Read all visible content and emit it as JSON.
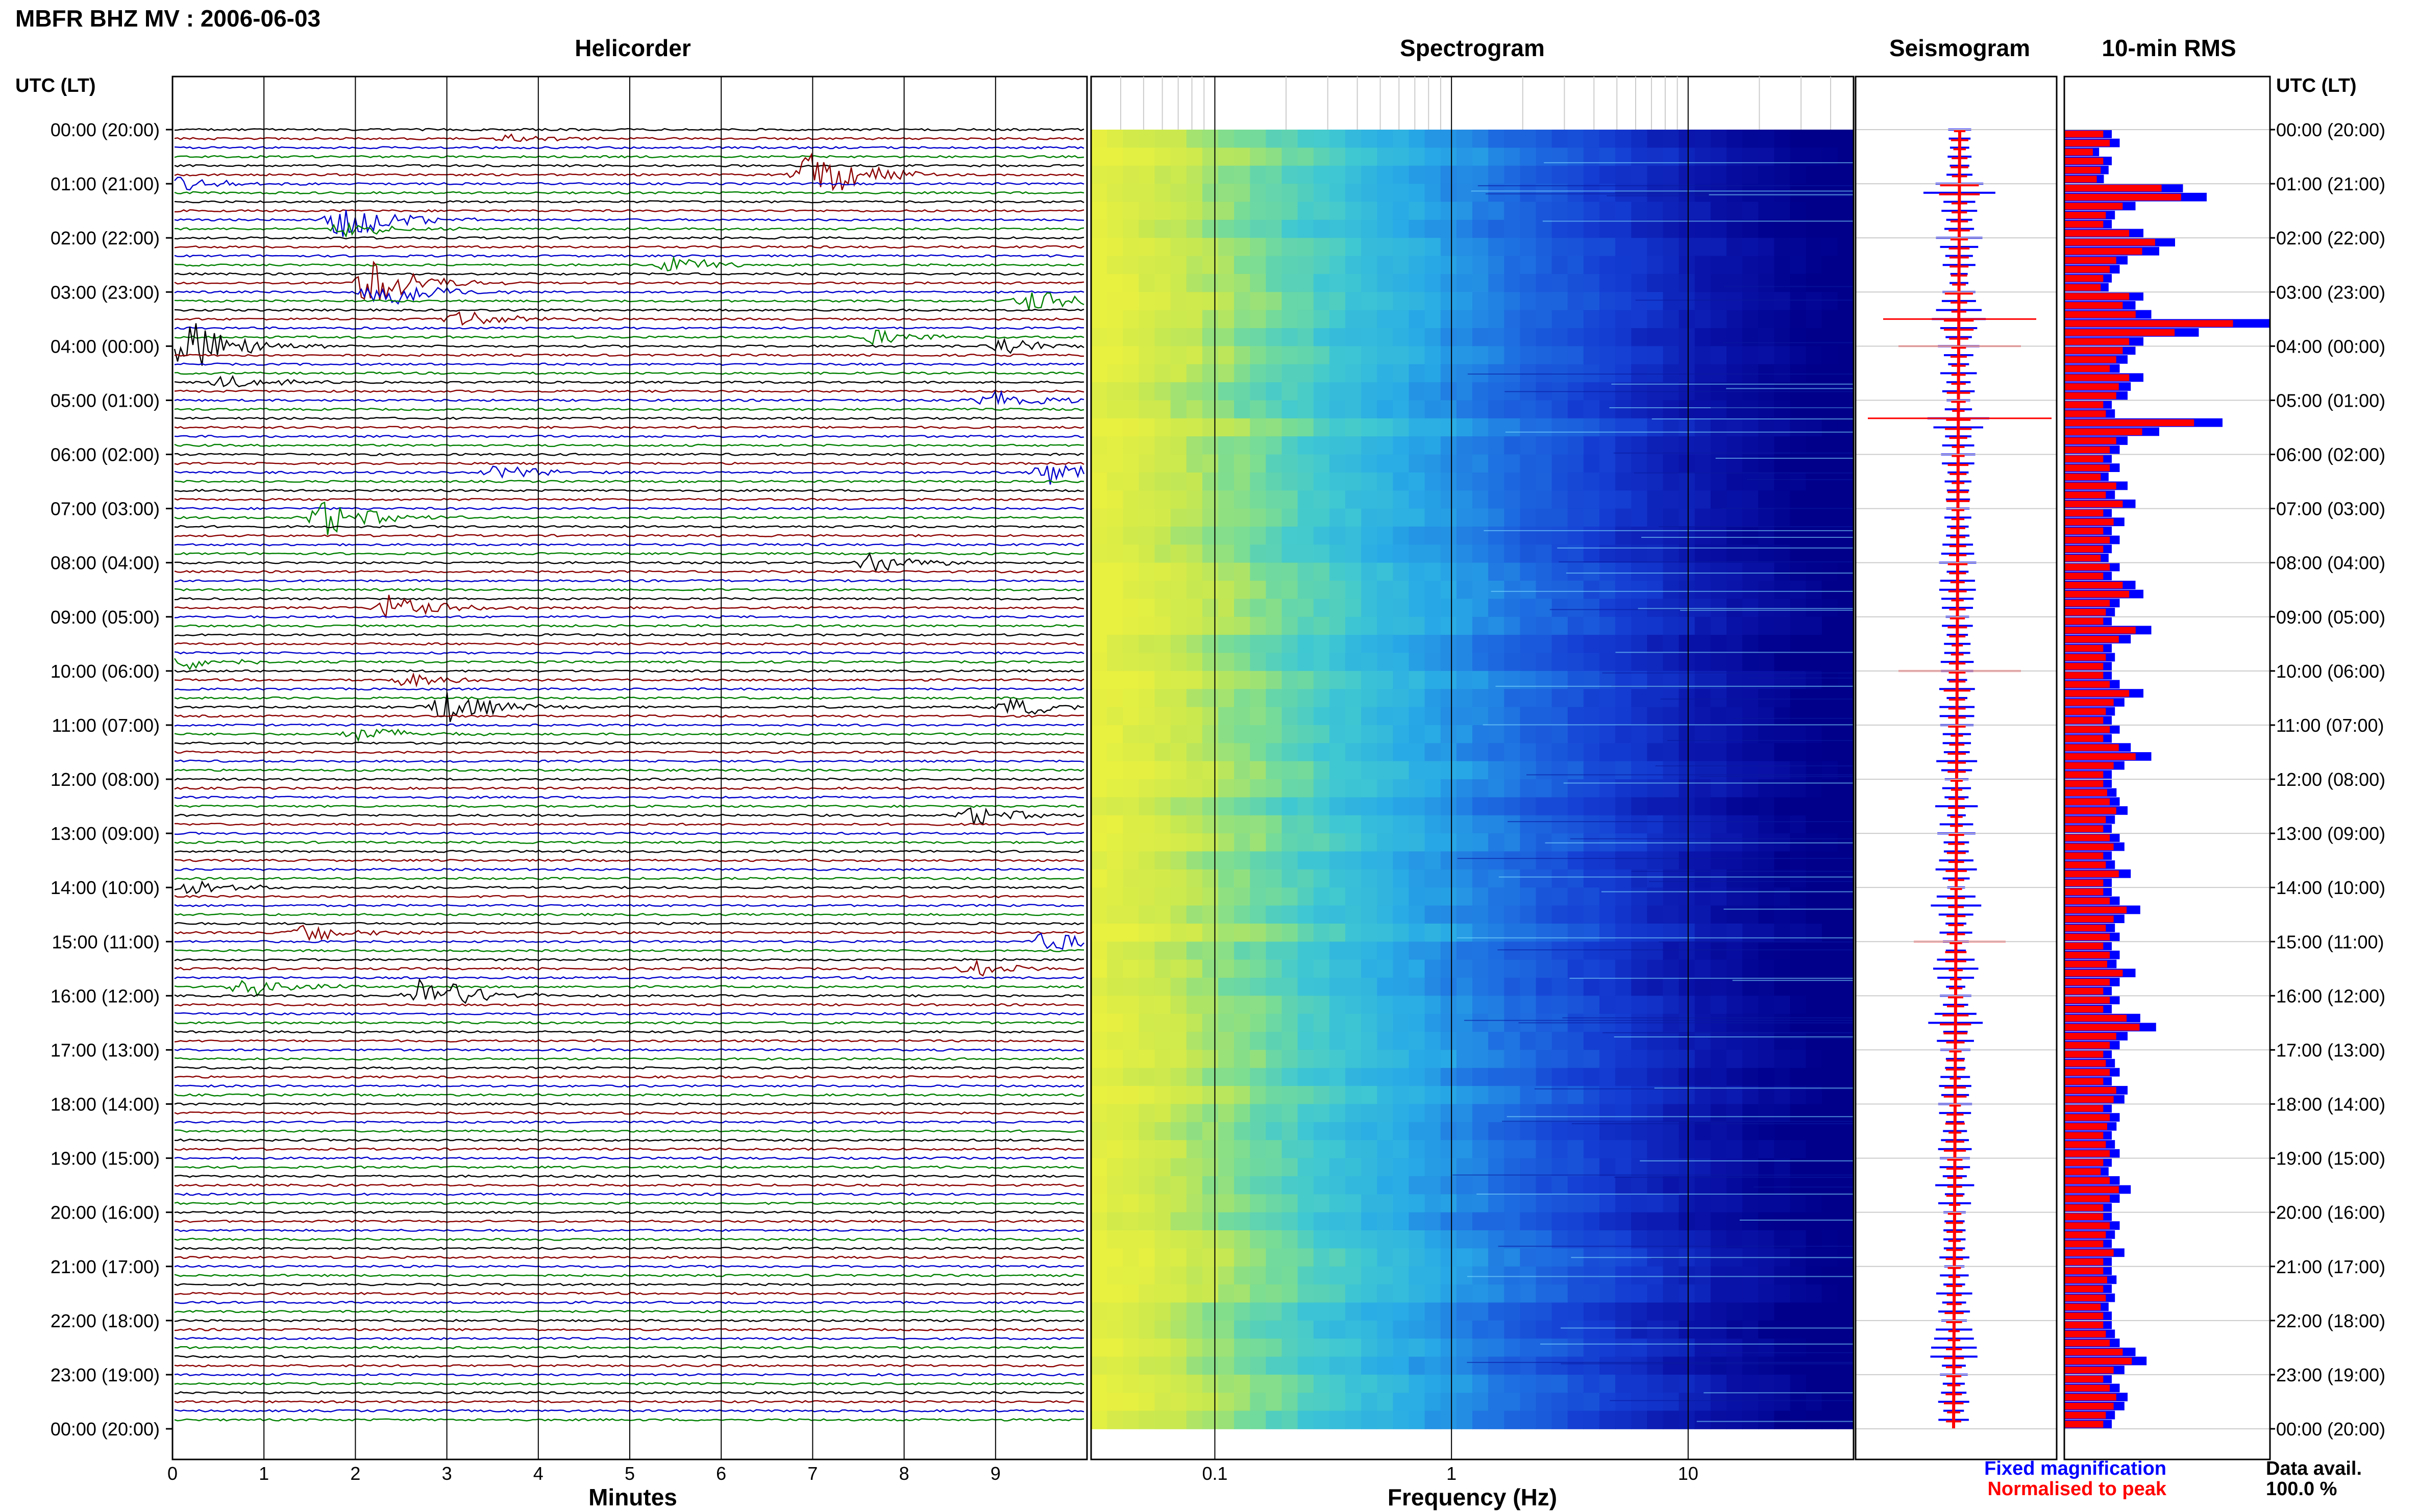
{
  "title": "MBFR BHZ MV : 2006-06-03",
  "panels": {
    "helicorder": "Helicorder",
    "spectrogram": "Spectrogram",
    "seismogram": "Seismogram",
    "rms": "10-min RMS"
  },
  "time_axis_label": "UTC (LT)",
  "helicorder_xlabel": "Minutes",
  "spectrogram_xlabel": "Frequency (Hz)",
  "legend": {
    "fixed": "Fixed magnification",
    "normalised": "Normalised to peak",
    "fixed_color": "#0000ff",
    "normalised_color": "#ff0000"
  },
  "data_avail_label": "Data avail.",
  "data_avail_value": "100.0 %",
  "colors": {
    "trace_cycle": [
      "#000000",
      "#8b0000",
      "#0000cd",
      "#008000"
    ],
    "spec_low": "#e8f040",
    "spec_high": "#00008b"
  },
  "chart_data": [
    {
      "type": "line",
      "panel": "Helicorder",
      "xlabel": "Minutes",
      "ylabel": "UTC (LT)",
      "x_ticks": [
        "0",
        "1",
        "2",
        "3",
        "4",
        "5",
        "6",
        "7",
        "8",
        "9"
      ],
      "xlim": [
        0,
        10
      ],
      "y_ticks": [
        "00:00 (20:00)",
        "01:00 (21:00)",
        "02:00 (22:00)",
        "03:00 (23:00)",
        "04:00 (00:00)",
        "05:00 (01:00)",
        "06:00 (02:00)",
        "07:00 (03:00)",
        "08:00 (04:00)",
        "09:00 (05:00)",
        "10:00 (06:00)",
        "11:00 (07:00)",
        "12:00 (08:00)",
        "13:00 (09:00)",
        "14:00 (10:00)",
        "15:00 (11:00)",
        "16:00 (12:00)",
        "17:00 (13:00)",
        "18:00 (14:00)",
        "19:00 (15:00)",
        "20:00 (16:00)",
        "21:00 (17:00)",
        "22:00 (18:00)",
        "23:00 (19:00)",
        "00:00 (20:00)"
      ],
      "traces_per_hour": 6,
      "events": [
        {
          "row": 1,
          "minute": 3.7,
          "amp": 0.3,
          "color": 2
        },
        {
          "row": 5,
          "minute": 7.1,
          "amp": 1.6,
          "color": 2
        },
        {
          "row": 5,
          "minute": 7.0,
          "amp": 1.0,
          "color": 3
        },
        {
          "row": 6,
          "minute": 0.1,
          "amp": 0.5,
          "color": 1
        },
        {
          "row": 10,
          "minute": 1.9,
          "amp": 1.5,
          "color": 1
        },
        {
          "row": 11,
          "minute": 1.9,
          "amp": 0.6,
          "color": 1
        },
        {
          "row": 15,
          "minute": 5.5,
          "amp": 0.6,
          "color": 2
        },
        {
          "row": 17,
          "minute": 2.2,
          "amp": 1.8,
          "color": 1
        },
        {
          "row": 18,
          "minute": 2.3,
          "amp": 1.4,
          "color": 1
        },
        {
          "row": 19,
          "minute": 9.4,
          "amp": 0.8,
          "color": 0
        },
        {
          "row": 21,
          "minute": 3.2,
          "amp": 0.6,
          "color": 2
        },
        {
          "row": 24,
          "minute": 0.2,
          "amp": 2.0,
          "color": 1
        },
        {
          "row": 24,
          "minute": 9.1,
          "amp": 0.7,
          "color": 1
        },
        {
          "row": 23,
          "minute": 7.7,
          "amp": 0.6,
          "color": 3
        },
        {
          "row": 30,
          "minute": 9.0,
          "amp": 0.8,
          "color": 0
        },
        {
          "row": 28,
          "minute": 0.6,
          "amp": 0.5,
          "color": 1
        },
        {
          "row": 38,
          "minute": 3.6,
          "amp": 0.6,
          "color": 0
        },
        {
          "row": 38,
          "minute": 9.6,
          "amp": 0.9,
          "color": 0
        },
        {
          "row": 43,
          "minute": 1.7,
          "amp": 1.3,
          "color": 0
        },
        {
          "row": 48,
          "minute": 7.6,
          "amp": 0.8,
          "color": 0
        },
        {
          "row": 53,
          "minute": 2.4,
          "amp": 1.0,
          "color": 1
        },
        {
          "row": 59,
          "minute": 0.1,
          "amp": 0.6,
          "color": 1
        },
        {
          "row": 61,
          "minute": 2.6,
          "amp": 0.5,
          "color": 0
        },
        {
          "row": 64,
          "minute": 3.0,
          "amp": 1.2,
          "color": 1
        },
        {
          "row": 64,
          "minute": 9.2,
          "amp": 0.7,
          "color": 0
        },
        {
          "row": 67,
          "minute": 2.1,
          "amp": 0.6,
          "color": 2
        },
        {
          "row": 76,
          "minute": 8.8,
          "amp": 0.7,
          "color": 0
        },
        {
          "row": 84,
          "minute": 0.2,
          "amp": 0.6,
          "color": 0
        },
        {
          "row": 89,
          "minute": 1.5,
          "amp": 0.7,
          "color": 2
        },
        {
          "row": 90,
          "minute": 9.6,
          "amp": 0.8,
          "color": 1
        },
        {
          "row": 93,
          "minute": 8.8,
          "amp": 0.6,
          "color": 0
        },
        {
          "row": 95,
          "minute": 0.8,
          "amp": 0.8,
          "color": 3
        },
        {
          "row": 96,
          "minute": 2.8,
          "amp": 1.6,
          "color": 1
        }
      ]
    },
    {
      "type": "heatmap",
      "panel": "Spectrogram",
      "xlabel": "Frequency (Hz)",
      "x_scale": "log",
      "x_ticks": [
        "0.1",
        "1",
        "10"
      ],
      "xlim": [
        0.03,
        50
      ],
      "rows": 144
    },
    {
      "type": "line",
      "panel": "Seismogram",
      "series": [
        {
          "name": "Fixed magnification",
          "color": "#0000ff"
        },
        {
          "name": "Normalised to peak",
          "color": "#ff0000"
        }
      ]
    },
    {
      "type": "bar",
      "panel": "10-min RMS",
      "orientation": "horizontal",
      "series_colors": [
        "#0000ff",
        "#ff0000"
      ],
      "rms": [
        0.3,
        0.35,
        0.22,
        0.3,
        0.28,
        0.25,
        0.75,
        0.9,
        0.45,
        0.32,
        0.3,
        0.5,
        0.7,
        0.6,
        0.4,
        0.35,
        0.3,
        0.28,
        0.5,
        0.45,
        0.55,
        1.3,
        0.85,
        0.5,
        0.45,
        0.4,
        0.35,
        0.5,
        0.42,
        0.4,
        0.3,
        0.32,
        1.0,
        0.6,
        0.4,
        0.35,
        0.3,
        0.35,
        0.28,
        0.4,
        0.32,
        0.45,
        0.3,
        0.38,
        0.3,
        0.35,
        0.3,
        0.28,
        0.35,
        0.3,
        0.45,
        0.5,
        0.35,
        0.32,
        0.3,
        0.55,
        0.42,
        0.3,
        0.32,
        0.3,
        0.3,
        0.35,
        0.5,
        0.38,
        0.32,
        0.3,
        0.35,
        0.3,
        0.42,
        0.55,
        0.38,
        0.3,
        0.3,
        0.33,
        0.35,
        0.4,
        0.32,
        0.3,
        0.35,
        0.38,
        0.3,
        0.32,
        0.42,
        0.3,
        0.3,
        0.35,
        0.48,
        0.38,
        0.32,
        0.35,
        0.3,
        0.35,
        0.33,
        0.45,
        0.35,
        0.3,
        0.35,
        0.3,
        0.48,
        0.58,
        0.4,
        0.35,
        0.3,
        0.32,
        0.35,
        0.3,
        0.4,
        0.38,
        0.3,
        0.35,
        0.33,
        0.3,
        0.32,
        0.35,
        0.3,
        0.28,
        0.35,
        0.42,
        0.35,
        0.3,
        0.3,
        0.35,
        0.32,
        0.3,
        0.38,
        0.3,
        0.3,
        0.33,
        0.3,
        0.32,
        0.28,
        0.3,
        0.3,
        0.32,
        0.35,
        0.45,
        0.52,
        0.38,
        0.3,
        0.35,
        0.4,
        0.38,
        0.32,
        0.3
      ]
    }
  ]
}
